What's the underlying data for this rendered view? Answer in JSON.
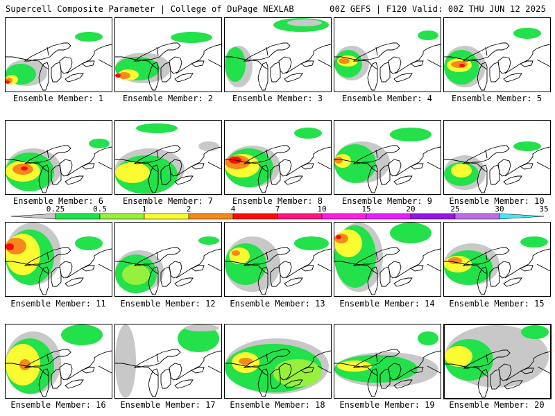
{
  "header": {
    "left": "Supercell Composite Parameter | College of DuPage NEXLAB",
    "right": "00Z GEFS | F120 Valid: 00Z THU JUN 12 2025"
  },
  "panels": [
    {
      "label": "Ensemble Member: 1",
      "selected": false
    },
    {
      "label": "Ensemble Member: 2",
      "selected": false
    },
    {
      "label": "Ensemble Member: 3",
      "selected": false
    },
    {
      "label": "Ensemble Member: 4",
      "selected": false
    },
    {
      "label": "Ensemble Member: 5",
      "selected": false
    },
    {
      "label": "Ensemble Member: 6",
      "selected": false
    },
    {
      "label": "Ensemble Member: 7",
      "selected": false
    },
    {
      "label": "Ensemble Member: 8",
      "selected": false
    },
    {
      "label": "Ensemble Member: 9",
      "selected": false
    },
    {
      "label": "Ensemble Member: 10",
      "selected": false
    },
    {
      "label": "Ensemble Member: 11",
      "selected": false
    },
    {
      "label": "Ensemble Member: 12",
      "selected": false
    },
    {
      "label": "Ensemble Member: 13",
      "selected": false
    },
    {
      "label": "Ensemble Member: 14",
      "selected": false
    },
    {
      "label": "Ensemble Member: 15",
      "selected": false
    },
    {
      "label": "Ensemble Member: 16",
      "selected": false
    },
    {
      "label": "Ensemble Member: 17",
      "selected": false
    },
    {
      "label": "Ensemble Member: 18",
      "selected": false
    },
    {
      "label": "Ensemble Member: 19",
      "selected": false
    },
    {
      "label": "Ensemble Member: 20",
      "selected": true
    }
  ],
  "colorbar": {
    "ticks": [
      "0.25",
      "0.5",
      "1",
      "2",
      "4",
      "7",
      "10",
      "15",
      "20",
      "25",
      "30",
      "35"
    ],
    "colors": [
      "#c8c8c8",
      "#22e14a",
      "#96f03c",
      "#fbfb32",
      "#f7891c",
      "#ff0a0a",
      "#ff1480",
      "#ff1ee0",
      "#e61eff",
      "#9614e6",
      "#b96ee6",
      "#48e6f0"
    ]
  }
}
